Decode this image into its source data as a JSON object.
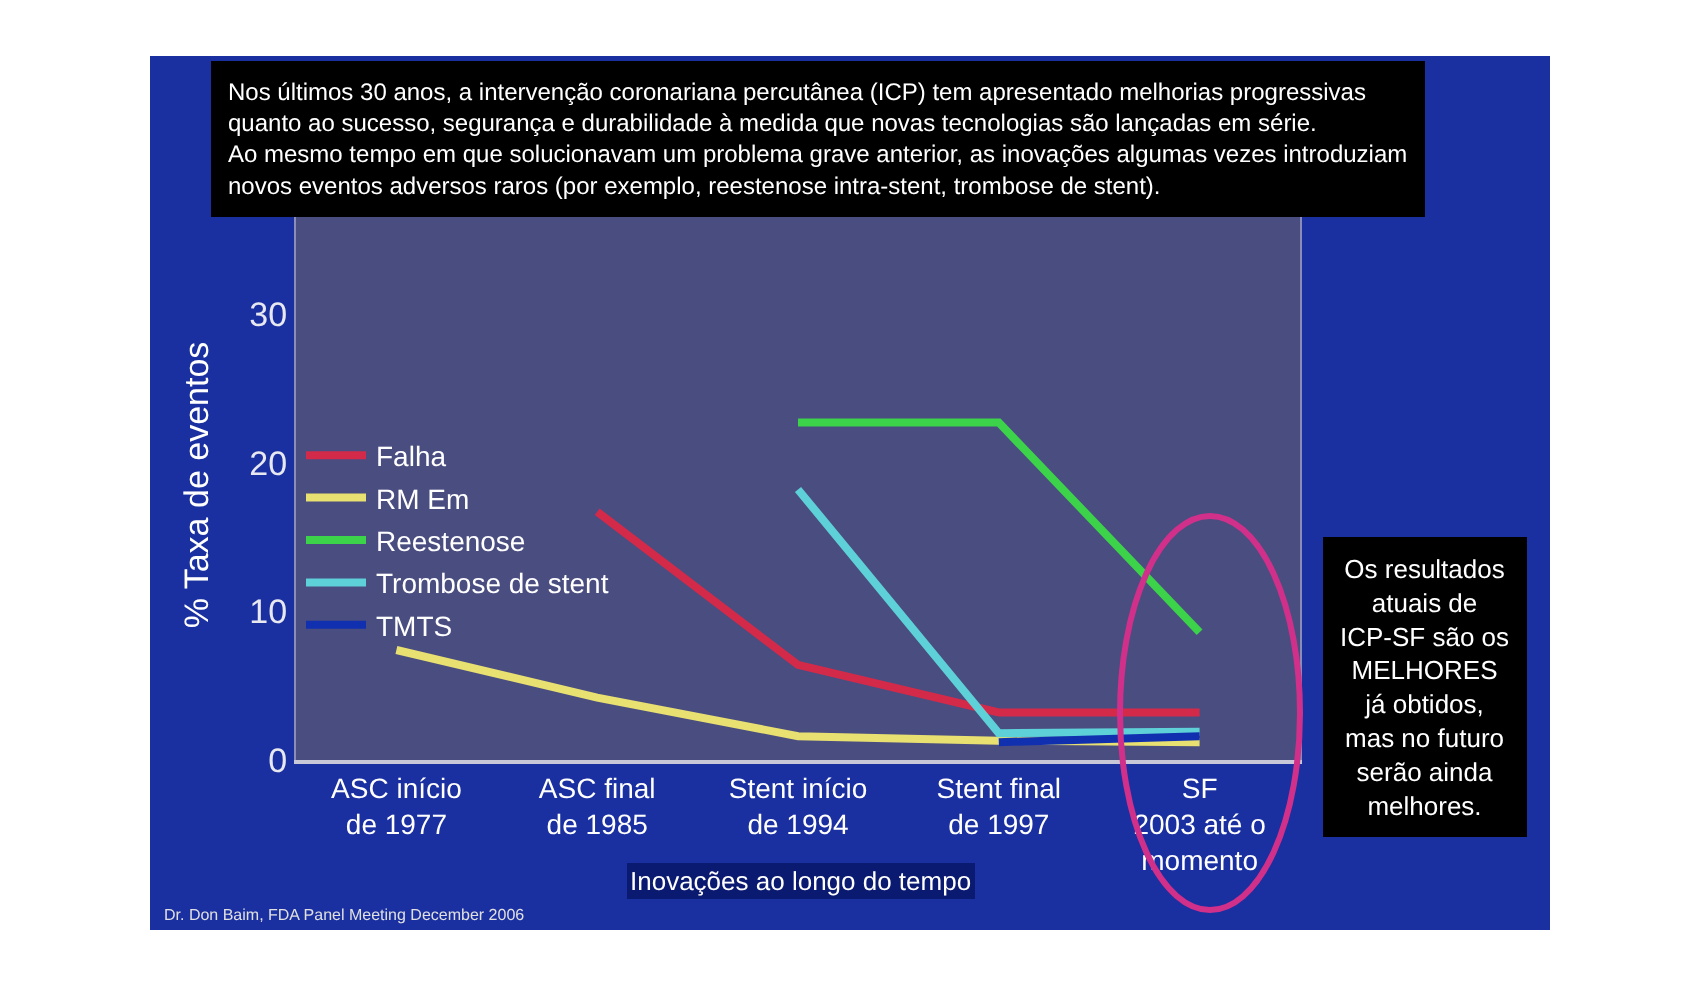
{
  "chart_data": {
    "type": "line",
    "title": "Nos últimos 30 anos, a intervenção coronariana percutânea (ICP) tem apresentado melhorias progressivas\nquanto ao sucesso, segurança e durabilidade à medida que novas tecnologias são lançadas em série.\nAo mesmo tempo em que solucionavam um problema grave anterior, as inovações algumas vezes introduziam\nnovos eventos adversos raros (por exemplo, reestenose intra-stent, trombose de stent).",
    "ylabel": "% Taxa de eventos",
    "xlabel": "Inovações ao longo do tempo",
    "categories": [
      "ASC início\nde 1977",
      "ASC final\nde 1985",
      "Stent início\nde 1994",
      "Stent final\nde 1997",
      "SF\n2003 até o\nmomento"
    ],
    "series": [
      {
        "name": "Falha",
        "color": "#d42a4a",
        "values": [
          null,
          16.7,
          6.4,
          3.2,
          3.2
        ]
      },
      {
        "name": "RM Em",
        "color": "#e8e070",
        "values": [
          7.4,
          4.2,
          1.6,
          1.3,
          1.2
        ]
      },
      {
        "name": "Reestenose",
        "color": "#3cd24a",
        "values": [
          null,
          null,
          22.7,
          22.7,
          8.6
        ]
      },
      {
        "name": "Trombose de stent",
        "color": "#5ed0d8",
        "values": [
          null,
          null,
          18.2,
          1.8,
          1.9
        ]
      },
      {
        "name": "TMTS",
        "color": "#1030b0",
        "values": [
          null,
          null,
          null,
          1.2,
          1.6
        ]
      }
    ],
    "ylim": [
      0,
      37
    ],
    "yticks": [
      0,
      10,
      20,
      30
    ],
    "grid": false,
    "legend": "left",
    "marker": "none",
    "line_style": "solid",
    "annotations": [
      "Os resultados\natuais de\nICP-SF são os\nMELHORES\njá obtidos,\nmas no futuro\nserão ainda\nmelhores.",
      "Dr. Don Baim, FDA Panel Meeting December 2006"
    ]
  }
}
